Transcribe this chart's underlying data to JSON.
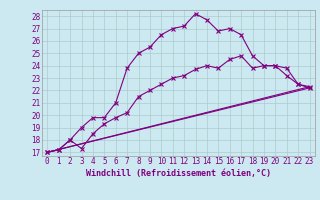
{
  "title": "",
  "xlabel": "Windchill (Refroidissement éolien,°C)",
  "bg_color": "#cce8f0",
  "line_color": "#800080",
  "grid_color": "#aacccc",
  "xlim": [
    -0.5,
    23.5
  ],
  "ylim": [
    16.7,
    28.5
  ],
  "yticks": [
    17,
    18,
    19,
    20,
    21,
    22,
    23,
    24,
    25,
    26,
    27,
    28
  ],
  "xticks": [
    0,
    1,
    2,
    3,
    4,
    5,
    6,
    7,
    8,
    9,
    10,
    11,
    12,
    13,
    14,
    15,
    16,
    17,
    18,
    19,
    20,
    21,
    22,
    23
  ],
  "series1_x": [
    0,
    1,
    2,
    3,
    4,
    5,
    6,
    7,
    8,
    9,
    10,
    11,
    12,
    13,
    14,
    15,
    16,
    17,
    18,
    19,
    20,
    21,
    22,
    23
  ],
  "series1_y": [
    17.0,
    17.2,
    18.0,
    17.3,
    18.5,
    19.3,
    19.8,
    20.2,
    21.5,
    22.0,
    22.5,
    23.0,
    23.2,
    23.7,
    24.0,
    23.8,
    24.5,
    24.8,
    23.8,
    24.0,
    24.0,
    23.8,
    22.5,
    22.2
  ],
  "series2_x": [
    0,
    1,
    2,
    3,
    4,
    5,
    6,
    7,
    8,
    9,
    10,
    11,
    12,
    13,
    14,
    15,
    16,
    17,
    18,
    19,
    20,
    21,
    22,
    23
  ],
  "series2_y": [
    17.0,
    17.2,
    18.0,
    19.0,
    19.8,
    19.8,
    21.0,
    23.8,
    25.0,
    25.5,
    26.5,
    27.0,
    27.2,
    28.2,
    27.7,
    26.8,
    27.0,
    26.5,
    24.8,
    24.0,
    24.0,
    23.2,
    22.5,
    22.3
  ],
  "series3_x": [
    0,
    23
  ],
  "series3_y": [
    17.0,
    22.2
  ],
  "series4_x": [
    0,
    23
  ],
  "series4_y": [
    17.0,
    22.3
  ],
  "tick_fontsize": 5.5,
  "xlabel_fontsize": 6.0
}
